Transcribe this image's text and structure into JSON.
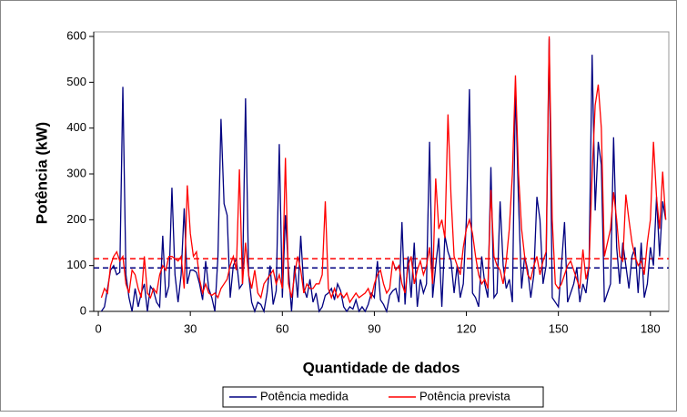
{
  "chart_data": {
    "type": "line",
    "y_label": "Potência (kW)",
    "x_label": "Quantidade de dados",
    "xlim": [
      -1.5,
      186
    ],
    "xticks": [
      0,
      30,
      60,
      90,
      120,
      150,
      180
    ],
    "ylim": [
      0,
      610
    ],
    "yticks": [
      0,
      100,
      200,
      300,
      400,
      500,
      600
    ],
    "x": [
      1,
      2,
      3,
      4,
      5,
      6,
      7,
      8,
      9,
      10,
      11,
      12,
      13,
      14,
      15,
      16,
      17,
      18,
      19,
      20,
      21,
      22,
      23,
      24,
      25,
      26,
      27,
      28,
      29,
      30,
      31,
      32,
      33,
      34,
      35,
      36,
      37,
      38,
      39,
      40,
      41,
      42,
      43,
      44,
      45,
      46,
      47,
      48,
      49,
      50,
      51,
      52,
      53,
      54,
      55,
      56,
      57,
      58,
      59,
      60,
      61,
      62,
      63,
      64,
      65,
      66,
      67,
      68,
      69,
      70,
      71,
      72,
      73,
      74,
      75,
      76,
      77,
      78,
      79,
      80,
      81,
      82,
      83,
      84,
      85,
      86,
      87,
      88,
      89,
      90,
      91,
      92,
      93,
      94,
      95,
      96,
      97,
      98,
      99,
      100,
      101,
      102,
      103,
      104,
      105,
      106,
      107,
      108,
      109,
      110,
      111,
      112,
      113,
      114,
      115,
      116,
      117,
      118,
      119,
      120,
      121,
      122,
      123,
      124,
      125,
      126,
      127,
      128,
      129,
      130,
      131,
      132,
      133,
      134,
      135,
      136,
      137,
      138,
      139,
      140,
      141,
      142,
      143,
      144,
      145,
      146,
      147,
      148,
      149,
      150,
      151,
      152,
      153,
      154,
      155,
      156,
      157,
      158,
      159,
      160,
      161,
      162,
      163,
      164,
      165,
      166,
      167,
      168,
      169,
      170,
      171,
      172,
      173,
      174,
      175,
      176,
      177,
      178,
      179,
      180,
      181,
      182,
      183,
      184,
      185
    ],
    "series": [
      {
        "name": "Potência medida",
        "color": "#000080",
        "values": [
          0,
          10,
          50,
          90,
          100,
          80,
          85,
          490,
          80,
          30,
          0,
          50,
          10,
          40,
          60,
          0,
          55,
          45,
          20,
          10,
          165,
          30,
          55,
          270,
          80,
          20,
          80,
          225,
          60,
          90,
          90,
          85,
          60,
          25,
          110,
          50,
          30,
          0,
          120,
          420,
          235,
          210,
          30,
          100,
          115,
          50,
          60,
          465,
          80,
          20,
          0,
          20,
          15,
          0,
          40,
          100,
          15,
          45,
          365,
          30,
          210,
          90,
          0,
          100,
          30,
          165,
          50,
          30,
          70,
          20,
          40,
          0,
          10,
          35,
          40,
          50,
          25,
          60,
          45,
          10,
          0,
          10,
          5,
          25,
          0,
          10,
          0,
          15,
          40,
          30,
          110,
          25,
          15,
          0,
          35,
          45,
          50,
          20,
          195,
          15,
          120,
          30,
          150,
          10,
          70,
          40,
          60,
          370,
          30,
          100,
          160,
          10,
          165,
          130,
          110,
          40,
          100,
          30,
          60,
          200,
          485,
          40,
          30,
          10,
          120,
          60,
          30,
          315,
          30,
          40,
          240,
          100,
          50,
          70,
          20,
          490,
          240,
          50,
          120,
          90,
          30,
          80,
          250,
          200,
          60,
          100,
          595,
          30,
          20,
          10,
          100,
          195,
          20,
          40,
          60,
          95,
          20,
          60,
          40,
          100,
          560,
          220,
          370,
          320,
          20,
          40,
          60,
          380,
          140,
          60,
          150,
          100,
          50,
          120,
          140,
          40,
          150,
          30,
          60,
          140,
          100,
          250,
          120,
          240,
          200
        ]
      },
      {
        "name": "Potência prevista",
        "color": "#ff0000",
        "values": [
          30,
          50,
          40,
          100,
          120,
          130,
          110,
          120,
          60,
          40,
          90,
          80,
          50,
          30,
          120,
          40,
          30,
          50,
          40,
          80,
          100,
          90,
          120,
          120,
          115,
          110,
          120,
          50,
          275,
          170,
          120,
          130,
          70,
          40,
          60,
          40,
          35,
          40,
          30,
          50,
          60,
          70,
          100,
          120,
          90,
          310,
          60,
          150,
          80,
          50,
          90,
          40,
          30,
          60,
          70,
          80,
          90,
          60,
          80,
          50,
          335,
          60,
          30,
          80,
          120,
          90,
          40,
          60,
          50,
          50,
          60,
          60,
          80,
          240,
          50,
          30,
          50,
          30,
          40,
          30,
          40,
          20,
          30,
          40,
          30,
          35,
          40,
          50,
          30,
          60,
          80,
          90,
          60,
          40,
          50,
          110,
          90,
          100,
          60,
          40,
          100,
          120,
          60,
          90,
          110,
          80,
          100,
          140,
          60,
          290,
          180,
          200,
          160,
          430,
          250,
          120,
          100,
          80,
          140,
          180,
          200,
          170,
          120,
          80,
          60,
          70,
          50,
          265,
          120,
          100,
          90,
          60,
          110,
          180,
          300,
          515,
          300,
          180,
          120,
          80,
          70,
          100,
          120,
          80,
          110,
          130,
          600,
          200,
          60,
          50,
          60,
          80,
          100,
          110,
          90,
          70,
          50,
          135,
          70,
          100,
          300,
          450,
          495,
          400,
          120,
          150,
          180,
          260,
          200,
          120,
          110,
          255,
          200,
          150,
          120,
          100,
          110,
          80,
          150,
          200,
          370,
          250,
          180,
          305,
          200
        ]
      }
    ],
    "mean_lines": [
      {
        "value": 95,
        "color": "#000080"
      },
      {
        "value": 115,
        "color": "#ff0000"
      }
    ]
  }
}
